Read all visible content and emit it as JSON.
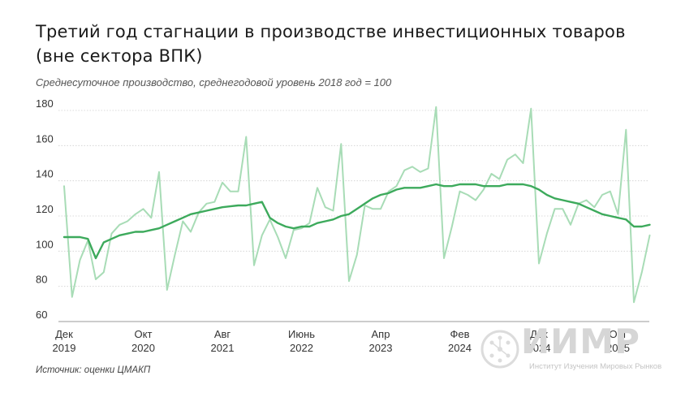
{
  "title": "Третий год стагнации в производстве инвестиционных товаров (вне сектора ВПК)",
  "subtitle": "Среднесуточное производство, среднегодовой уровень 2018 год = 100",
  "source": "Источник: оценки ЦМАКП",
  "logo": {
    "name": "ИИМР",
    "caption": "Институт Изучения Мировых Рынков"
  },
  "colors": {
    "monthly": "#a8dcb6",
    "trend": "#3daa5c",
    "grid": "#cfcfcf",
    "logo": "#d9d9d9"
  },
  "chart_data": {
    "type": "line",
    "title": "Третий год стагнации в производстве инвестиционных товаров (вне сектора ВПК)",
    "subtitle": "Среднесуточное производство, среднегодовой уровень 2018 год = 100",
    "ylim": [
      60,
      180
    ],
    "yticks": [
      60,
      80,
      100,
      120,
      140,
      160,
      180
    ],
    "grid": "horizontal",
    "xticks": [
      {
        "index": 0,
        "month": "Дек",
        "year": "2019"
      },
      {
        "index": 10,
        "month": "Окт",
        "year": "2020"
      },
      {
        "index": 20,
        "month": "Авг",
        "year": "2021"
      },
      {
        "index": 30,
        "month": "Июнь",
        "year": "2022"
      },
      {
        "index": 40,
        "month": "Апр",
        "year": "2023"
      },
      {
        "index": 50,
        "month": "Фев",
        "year": "2024"
      },
      {
        "index": 60,
        "month": "Дек",
        "year": "2024"
      },
      {
        "index": 70,
        "month": "Окт",
        "year": "2025"
      }
    ],
    "x_start": "2019-12",
    "series": [
      {
        "values": [
          137,
          74,
          95,
          106,
          84,
          88,
          110,
          115,
          117,
          121,
          124,
          119,
          145,
          78,
          98,
          117,
          111,
          122,
          127,
          128,
          139,
          134,
          134,
          165,
          92,
          109,
          118,
          108,
          96,
          112,
          113,
          116,
          136,
          125,
          123,
          161,
          83,
          98,
          126,
          124,
          124,
          134,
          137,
          146,
          148,
          145,
          147,
          182,
          96,
          114,
          134,
          132,
          129,
          135,
          144,
          141,
          152,
          155,
          150,
          181,
          93,
          110,
          124,
          124,
          115,
          127,
          129,
          125,
          132,
          134,
          121,
          169,
          71,
          88,
          109
        ]
      },
      {
        "values": [
          108,
          108,
          108,
          107,
          96,
          105,
          107,
          109,
          110,
          111,
          111,
          112,
          113,
          115,
          117,
          119,
          121,
          122,
          123,
          124,
          125,
          125.5,
          126,
          126,
          127,
          128,
          119,
          116,
          114,
          113,
          114,
          114,
          116,
          117,
          118,
          120,
          121,
          124,
          127,
          130,
          132,
          133,
          135,
          136,
          136,
          136,
          137,
          138,
          137,
          137,
          138,
          138,
          138,
          137,
          137,
          137,
          138,
          138,
          138,
          137,
          135,
          132,
          130,
          129,
          128,
          127,
          125,
          123,
          121,
          120,
          119,
          118,
          114,
          114,
          115
        ]
      }
    ]
  }
}
